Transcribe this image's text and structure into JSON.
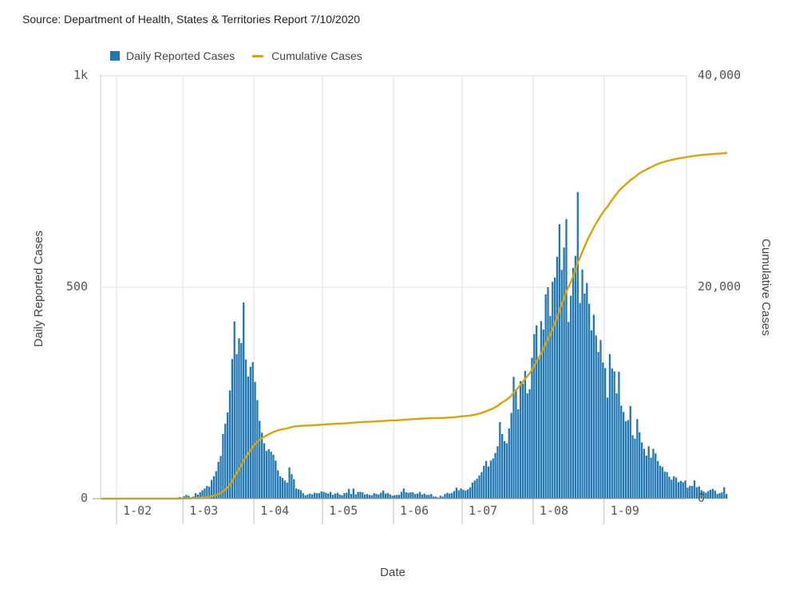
{
  "source_text": "Source: Department of Health, States & Territories Report 7/10/2020",
  "colors": {
    "bars": "#1f77b4",
    "line": "#dba400",
    "grid": "#e3e3e3"
  },
  "chart_data": {
    "type": "bar",
    "legend": [
      {
        "label": "Daily Reported Cases",
        "kind": "bar"
      },
      {
        "label": "Cumulative Cases",
        "kind": "line"
      }
    ],
    "legend_position": "top-left",
    "xlabel": "Date",
    "ylabel_left": "Daily Reported Cases",
    "ylabel_right": "Cumulative Cases",
    "x_range": [
      "2020-01-25",
      "2020-10-07"
    ],
    "x_ticks": [
      {
        "date": "2020-02-01",
        "label": "1-02"
      },
      {
        "date": "2020-03-01",
        "label": "1-03"
      },
      {
        "date": "2020-04-01",
        "label": "1-04"
      },
      {
        "date": "2020-05-01",
        "label": "1-05"
      },
      {
        "date": "2020-06-01",
        "label": "1-06"
      },
      {
        "date": "2020-07-01",
        "label": "1-07"
      },
      {
        "date": "2020-08-01",
        "label": "1-08"
      },
      {
        "date": "2020-09-01",
        "label": "1-09"
      }
    ],
    "y_left": {
      "min": 0,
      "max": 1000,
      "ticks": [
        0,
        500,
        1000
      ],
      "tick_labels": [
        "0",
        "500",
        "1k"
      ]
    },
    "y_right": {
      "min": 0,
      "max": 40000,
      "ticks": [
        0,
        20000,
        40000
      ],
      "tick_labels": [
        "0",
        "20,000",
        "40,000"
      ]
    },
    "grid": true,
    "series": [
      {
        "name": "Daily Reported Cases",
        "type": "bar",
        "start_date": "2020-01-25",
        "values": [
          0,
          0,
          0,
          0,
          0,
          0,
          0,
          0,
          1,
          0,
          2,
          0,
          0,
          0,
          0,
          0,
          0,
          0,
          0,
          0,
          0,
          0,
          0,
          0,
          0,
          0,
          0,
          0,
          0,
          0,
          0,
          0,
          0,
          2,
          4,
          3,
          6,
          9,
          7,
          3,
          5,
          13,
          10,
          15,
          20,
          24,
          30,
          28,
          44,
          53,
          65,
          87,
          101,
          153,
          177,
          204,
          256,
          330,
          419,
          342,
          379,
          368,
          464,
          329,
          289,
          312,
          323,
          276,
          233,
          184,
          156,
          131,
          113,
          117,
          111,
          104,
          90,
          67,
          53,
          49,
          43,
          38,
          74,
          58,
          46,
          24,
          22,
          20,
          13,
          8,
          10,
          12,
          10,
          14,
          13,
          13,
          17,
          16,
          14,
          12,
          16,
          9,
          12,
          14,
          10,
          8,
          13,
          14,
          23,
          11,
          24,
          10,
          16,
          16,
          15,
          10,
          11,
          9,
          8,
          13,
          11,
          10,
          14,
          19,
          12,
          13,
          10,
          7,
          8,
          9,
          9,
          16,
          24,
          15,
          14,
          15,
          15,
          11,
          12,
          16,
          10,
          12,
          9,
          9,
          11,
          5,
          5,
          3,
          7,
          5,
          11,
          14,
          12,
          13,
          18,
          26,
          20,
          24,
          21,
          19,
          22,
          27,
          38,
          43,
          47,
          55,
          63,
          78,
          89,
          76,
          90,
          95,
          108,
          124,
          181,
          153,
          136,
          131,
          166,
          203,
          288,
          258,
          211,
          278,
          272,
          302,
          249,
          259,
          333,
          389,
          410,
          331,
          420,
          400,
          483,
          500,
          432,
          513,
          523,
          572,
          649,
          541,
          594,
          661,
          418,
          480,
          546,
          574,
          725,
          463,
          542,
          485,
          510,
          461,
          398,
          435,
          386,
          347,
          375,
          322,
          309,
          239,
          342,
          308,
          301,
          249,
          300,
          220,
          205,
          183,
          186,
          219,
          150,
          142,
          188,
          157,
          133,
          118,
          102,
          124,
          97,
          118,
          107,
          89,
          78,
          75,
          64,
          63,
          52,
          45,
          53,
          50,
          39,
          42,
          39,
          43,
          26,
          30,
          30,
          43,
          27,
          29,
          20,
          17,
          14,
          18,
          21,
          23,
          19,
          11,
          13,
          15,
          27,
          11
        ]
      },
      {
        "name": "Cumulative Cases",
        "type": "line",
        "start_date": "2020-01-25",
        "values": [
          0,
          0,
          0,
          0,
          0,
          0,
          0,
          0,
          1,
          1,
          3,
          3,
          3,
          3,
          3,
          3,
          3,
          3,
          3,
          3,
          3,
          3,
          3,
          3,
          3,
          3,
          3,
          3,
          3,
          3,
          3,
          3,
          3,
          5,
          9,
          12,
          18,
          27,
          34,
          37,
          42,
          55,
          65,
          80,
          100,
          124,
          154,
          182,
          226,
          279,
          344,
          431,
          532,
          685,
          862,
          1066,
          1322,
          1652,
          2071,
          2413,
          2792,
          3160,
          3624,
          3953,
          4242,
          4554,
          4877,
          5153,
          5386,
          5570,
          5726,
          5857,
          5970,
          6087,
          6198,
          6302,
          6392,
          6459,
          6512,
          6561,
          6604,
          6642,
          6716,
          6774,
          6820,
          6844,
          6866,
          6886,
          6899,
          6907,
          6917,
          6929,
          6939,
          6953,
          6966,
          6979,
          6996,
          7012,
          7026,
          7038,
          7054,
          7063,
          7075,
          7089,
          7099,
          7107,
          7120,
          7134,
          7157,
          7168,
          7192,
          7202,
          7218,
          7234,
          7249,
          7259,
          7270,
          7279,
          7287,
          7300,
          7311,
          7321,
          7335,
          7354,
          7366,
          7379,
          7389,
          7396,
          7404,
          7413,
          7422,
          7438,
          7462,
          7477,
          7491,
          7506,
          7521,
          7532,
          7544,
          7560,
          7570,
          7582,
          7591,
          7600,
          7611,
          7616,
          7621,
          7624,
          7631,
          7636,
          7647,
          7661,
          7673,
          7686,
          7704,
          7730,
          7750,
          7774,
          7795,
          7814,
          7836,
          7863,
          7901,
          7944,
          7991,
          8046,
          8109,
          8187,
          8276,
          8352,
          8442,
          8537,
          8645,
          8769,
          8950,
          9103,
          9239,
          9370,
          9536,
          9739,
          10027,
          10285,
          10496,
          10774,
          11046,
          11348,
          11597,
          11856,
          12189,
          12578,
          12988,
          13319,
          13739,
          14139,
          14622,
          15122,
          15554,
          16067,
          16590,
          17162,
          17811,
          18352,
          18946,
          19607,
          20025,
          20505,
          21051,
          21625,
          22350,
          22813,
          23355,
          23840,
          24350,
          24811,
          25209,
          25644,
          26030,
          26377,
          26752,
          27074,
          27383,
          27622,
          27964,
          28272,
          28573,
          28822,
          29122,
          29342,
          29547,
          29730,
          29916,
          30135,
          30285,
          30427,
          30615,
          30772,
          30905,
          31023,
          31125,
          31249,
          31346,
          31464,
          31571,
          31660,
          31738,
          31813,
          31877,
          31940,
          31992,
          32037,
          32090,
          32140,
          32179,
          32221,
          32260,
          32303,
          32329,
          32359,
          32389,
          32432,
          32459,
          32488,
          32508,
          32525,
          32539,
          32557,
          32578,
          32601,
          32620,
          32631,
          32644,
          32659,
          32686,
          32697
        ]
      }
    ]
  }
}
